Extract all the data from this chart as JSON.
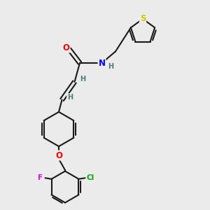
{
  "background_color": "#ebebeb",
  "bond_color": "#1a1a1a",
  "atom_colors": {
    "O": "#ff0000",
    "N": "#0000ee",
    "S": "#cccc00",
    "F": "#ee00ee",
    "Cl": "#00aa00",
    "H": "#4a7a7a",
    "C": "#1a1a1a"
  },
  "figsize": [
    3.0,
    3.0
  ],
  "dpi": 100
}
